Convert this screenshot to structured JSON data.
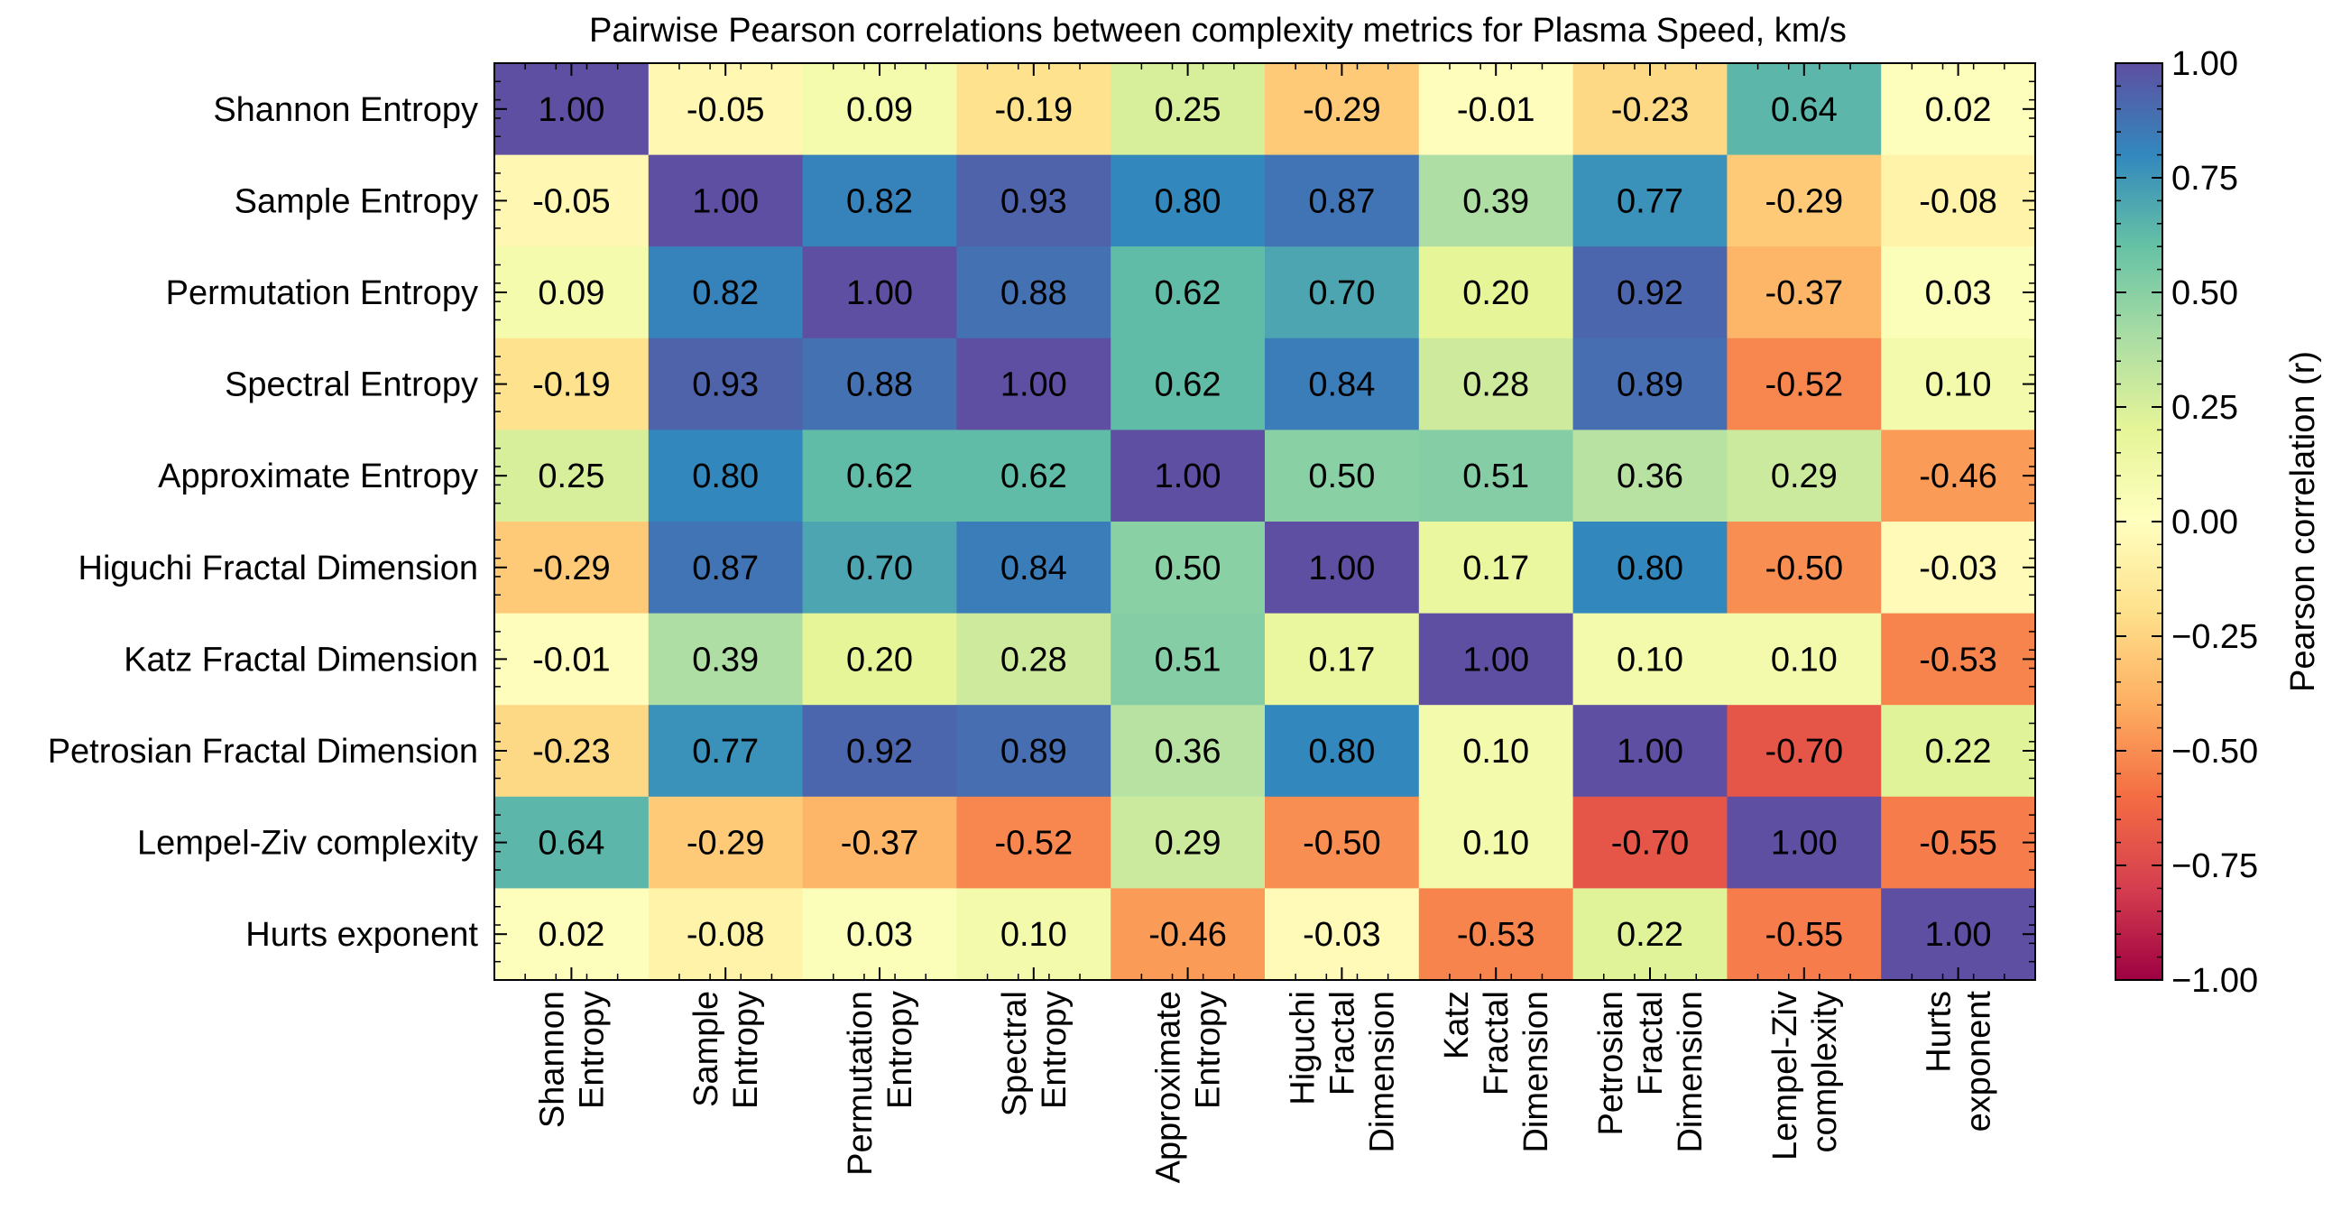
{
  "chart_data": {
    "type": "heatmap",
    "title": "Pairwise Pearson correlations between complexity metrics for Plasma Speed, km/s",
    "row_labels": [
      "Shannon Entropy",
      "Sample Entropy",
      "Permutation Entropy",
      "Spectral Entropy",
      "Approximate Entropy",
      "Higuchi Fractal Dimension",
      "Katz Fractal Dimension",
      "Petrosian Fractal Dimension",
      "Lempel-Ziv complexity",
      "Hurts exponent"
    ],
    "col_labels": [
      [
        "Shannon",
        "Entropy"
      ],
      [
        "Sample",
        "Entropy"
      ],
      [
        "Permutation",
        "Entropy"
      ],
      [
        "Spectral",
        "Entropy"
      ],
      [
        "Approximate",
        "Entropy"
      ],
      [
        "Higuchi",
        "Fractal",
        "Dimension"
      ],
      [
        "Katz",
        "Fractal",
        "Dimension"
      ],
      [
        "Petrosian",
        "Fractal",
        "Dimension"
      ],
      [
        "Lempel-Ziv",
        "complexity"
      ],
      [
        "Hurts",
        "exponent"
      ]
    ],
    "values": [
      [
        1.0,
        -0.05,
        0.09,
        -0.19,
        0.25,
        -0.29,
        -0.01,
        -0.23,
        0.64,
        0.02
      ],
      [
        -0.05,
        1.0,
        0.82,
        0.93,
        0.8,
        0.87,
        0.39,
        0.77,
        -0.29,
        -0.08
      ],
      [
        0.09,
        0.82,
        1.0,
        0.88,
        0.62,
        0.7,
        0.2,
        0.92,
        -0.37,
        0.03
      ],
      [
        -0.19,
        0.93,
        0.88,
        1.0,
        0.62,
        0.84,
        0.28,
        0.89,
        -0.52,
        0.1
      ],
      [
        0.25,
        0.8,
        0.62,
        0.62,
        1.0,
        0.5,
        0.51,
        0.36,
        0.29,
        -0.46
      ],
      [
        -0.29,
        0.87,
        0.7,
        0.84,
        0.5,
        1.0,
        0.17,
        0.8,
        -0.5,
        -0.03
      ],
      [
        -0.01,
        0.39,
        0.2,
        0.28,
        0.51,
        0.17,
        1.0,
        0.1,
        0.1,
        -0.53
      ],
      [
        -0.23,
        0.77,
        0.92,
        0.89,
        0.36,
        0.8,
        0.1,
        1.0,
        -0.7,
        0.22
      ],
      [
        0.64,
        -0.29,
        -0.37,
        -0.52,
        0.29,
        -0.5,
        0.1,
        -0.7,
        1.0,
        -0.55
      ],
      [
        0.02,
        -0.08,
        0.03,
        0.1,
        -0.46,
        -0.03,
        -0.53,
        0.22,
        -0.55,
        1.0
      ]
    ],
    "value_range": [
      -1.0,
      1.0
    ],
    "colormap": "Spectral",
    "colormap_stops": [
      "#9e0142",
      "#d53e4f",
      "#f46d43",
      "#fdae61",
      "#fee08b",
      "#ffffbf",
      "#e6f598",
      "#abdda4",
      "#66c2a5",
      "#3288bd",
      "#5e4fa2"
    ],
    "colorbar": {
      "label": "Pearson correlation (r)",
      "ticks": [
        1.0,
        0.75,
        0.5,
        0.25,
        0.0,
        -0.25,
        -0.5,
        -0.75,
        -1.0
      ],
      "tick_labels": [
        "1.00",
        "0.75",
        "0.50",
        "0.25",
        "0.00",
        "−0.25",
        "−0.50",
        "−0.75",
        "−1.00"
      ]
    }
  }
}
